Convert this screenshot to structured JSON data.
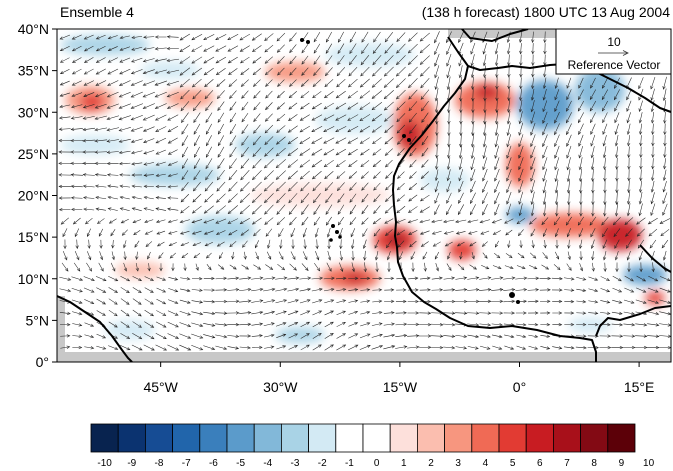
{
  "header": {
    "left_label": "Ensemble 4",
    "right_label": "(138 h forecast) 1800 UTC 13 Aug 2004"
  },
  "map": {
    "lat_range": [
      0,
      40
    ],
    "lon_range": [
      -58,
      19
    ],
    "lat_ticks": [
      {
        "value": 40,
        "label": "40°N"
      },
      {
        "value": 35,
        "label": "35°N"
      },
      {
        "value": 30,
        "label": "30°N"
      },
      {
        "value": 25,
        "label": "25°N"
      },
      {
        "value": 20,
        "label": "20°N"
      },
      {
        "value": 15,
        "label": "15°N"
      },
      {
        "value": 10,
        "label": "10°N"
      },
      {
        "value": 5,
        "label": "5°N"
      },
      {
        "value": 0,
        "label": "0°"
      }
    ],
    "lon_ticks": [
      {
        "value": -45,
        "label": "45°W"
      },
      {
        "value": -30,
        "label": "30°W"
      },
      {
        "value": -15,
        "label": "15°W"
      },
      {
        "value": 0,
        "label": "0°"
      },
      {
        "value": 15,
        "label": "15°E"
      }
    ],
    "land_mask_color": "#c8c8c8",
    "coastline_color": "#000000",
    "vector_color": "#222222"
  },
  "reference_vector": {
    "magnitude_label": "10",
    "caption": "Reference Vector"
  },
  "colorbar": {
    "labels": [
      "-10",
      "-9",
      "-8",
      "-7",
      "-6",
      "-5",
      "-4",
      "-3",
      "-2",
      "-1",
      "0",
      "1",
      "2",
      "3",
      "4",
      "5",
      "6",
      "7",
      "8",
      "9",
      "10"
    ],
    "colors": [
      "#08234f",
      "#0b3370",
      "#164c94",
      "#2165ab",
      "#3a7fbc",
      "#5b9bcb",
      "#82b8d9",
      "#a9d3e6",
      "#d3eaf4",
      "#ffffff",
      "#ffffff",
      "#fde0db",
      "#fbbeaf",
      "#f7967f",
      "#f06a55",
      "#e23b33",
      "#c81c22",
      "#a8101a",
      "#830a14",
      "#5c0008"
    ]
  }
}
